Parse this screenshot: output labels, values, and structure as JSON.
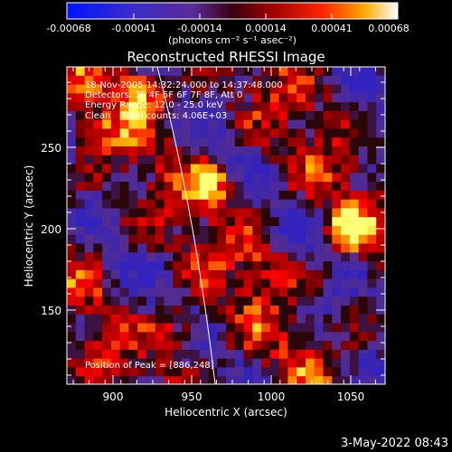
{
  "colorbar": {
    "tick_labels": [
      "-0.00068",
      "-0.00041",
      "-0.00014",
      "0.00014",
      "0.00041",
      "0.00068"
    ],
    "unit_label": "(photons cm⁻² s⁻¹ asec⁻²)",
    "range": [
      -0.00068,
      0.00068
    ]
  },
  "image": {
    "title": "Reconstructed RHESSI Image",
    "info_lines": [
      "18-Nov-2005 14:32:24.000 to 14:37:48.000",
      "Detectors: 3F 4F 5F 6F 7F 8F, Att 0",
      "Energy Range: 12.0 - 25.0 keV",
      "Clean    Total counts: 4.06E+03"
    ],
    "peak_label": "Position of Peak = [886,248]",
    "colormap": "red-temperature with blue-purple negatives"
  },
  "axes": {
    "xlabel": "Heliocentric X (arcsec)",
    "ylabel": "Heliocentric Y (arcsec)",
    "x_ticks": [
      "900",
      "950",
      "1000",
      "1050"
    ],
    "y_ticks": [
      "150",
      "200",
      "250"
    ],
    "x_range": [
      872,
      1066
    ],
    "y_range": [
      105,
      298
    ]
  },
  "timestamp": "3-May-2022 08:43"
}
